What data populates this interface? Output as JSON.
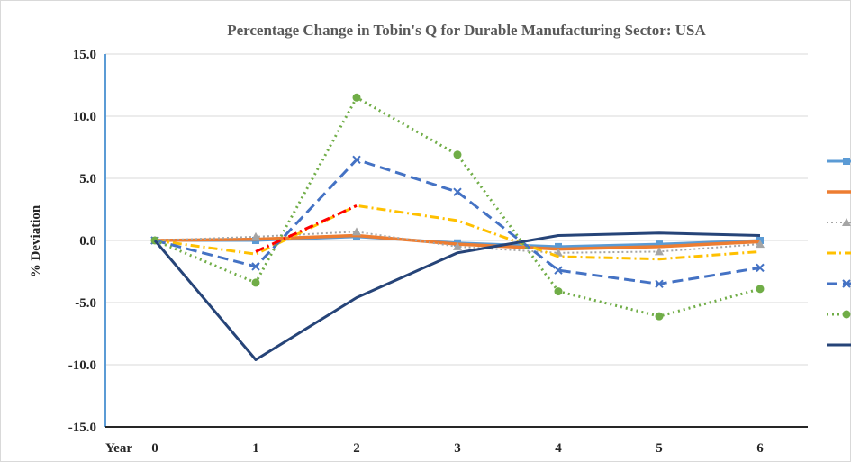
{
  "chart_data": {
    "type": "line",
    "title": "Percentage Change in Tobin's Q for Durable Manufacturing Sector: USA",
    "xlabel": "Year",
    "ylabel": "% Deviation",
    "categories": [
      "0",
      "1",
      "2",
      "3",
      "4",
      "5",
      "6"
    ],
    "y_tick_labels": [
      "15.0",
      "10.0",
      "5.0",
      "0.0",
      "-5.0",
      "-10.0",
      "-15.0"
    ],
    "ylim": [
      -15,
      15
    ],
    "grid": true,
    "legend_position": "right",
    "series": [
      {
        "color": "#5b9bd5",
        "dash": "",
        "width": 3,
        "marker": "square",
        "values": [
          0.0,
          0.0,
          0.3,
          -0.2,
          -0.5,
          -0.3,
          0.0
        ]
      },
      {
        "color": "#ed7d31",
        "dash": "",
        "width": 3.5,
        "marker": "none",
        "values": [
          0.0,
          0.1,
          0.4,
          -0.3,
          -0.7,
          -0.5,
          -0.1
        ]
      },
      {
        "color": "#a5a5a5",
        "dash": "2 3",
        "width": 2,
        "marker": "triangle",
        "values": [
          0.0,
          0.3,
          0.7,
          -0.5,
          -1.0,
          -0.9,
          -0.3
        ]
      },
      {
        "color": "#ffc000",
        "dash": "10 4 2 4",
        "width": 3,
        "marker": "none",
        "values": [
          0.0,
          -1.1,
          2.8,
          1.6,
          -1.3,
          -1.5,
          -0.9
        ]
      },
      {
        "color": "#4472c4",
        "dash": "12 6",
        "width": 3,
        "marker": "x",
        "values": [
          0.0,
          -2.1,
          6.5,
          3.9,
          -2.4,
          -3.5,
          -2.2
        ]
      },
      {
        "color": "#70ad47",
        "dash": "2 4",
        "width": 3,
        "marker": "circle",
        "values": [
          0.0,
          -3.4,
          11.5,
          6.9,
          -4.1,
          -6.1,
          -3.9
        ]
      },
      {
        "color": "#264478",
        "dash": "",
        "width": 3,
        "marker": "none",
        "values": [
          0.0,
          -9.6,
          -4.6,
          -1.0,
          0.4,
          0.6,
          0.4
        ]
      },
      {
        "color": "#ff0000",
        "dash": "10 4 2 4",
        "width": 3,
        "marker": "none",
        "x": [
          1,
          2
        ],
        "values": [
          -0.9,
          2.8
        ]
      }
    ]
  }
}
